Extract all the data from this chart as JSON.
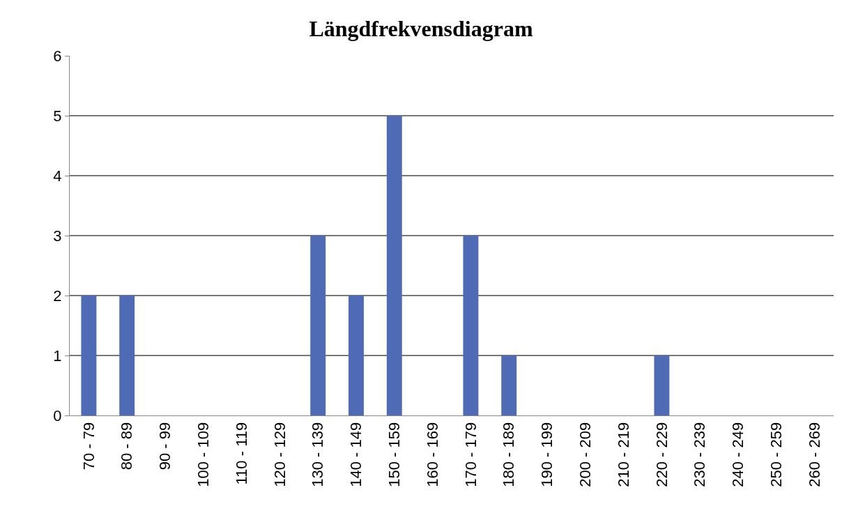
{
  "chart_data": {
    "type": "bar",
    "title": "Längdfrekvensdiagram",
    "categories": [
      "70 - 79",
      "80 - 89",
      "90 - 99",
      "100 - 109",
      "110 - 119",
      "120 - 129",
      "130 - 139",
      "140 - 149",
      "150 - 159",
      "160 - 169",
      "170 - 179",
      "180 - 189",
      "190 - 199",
      "200 - 209",
      "210 - 219",
      "220 - 229",
      "230 - 239",
      "240 - 249",
      "250 - 259",
      "260 - 269"
    ],
    "values": [
      2,
      2,
      0,
      0,
      0,
      0,
      3,
      2,
      5,
      0,
      3,
      1,
      0,
      0,
      0,
      1,
      0,
      0,
      0,
      0
    ],
    "color": "#4f6bb5",
    "ylim": [
      0,
      6
    ],
    "yticks": [
      0,
      1,
      2,
      3,
      4,
      5,
      6
    ],
    "grid": "y"
  }
}
